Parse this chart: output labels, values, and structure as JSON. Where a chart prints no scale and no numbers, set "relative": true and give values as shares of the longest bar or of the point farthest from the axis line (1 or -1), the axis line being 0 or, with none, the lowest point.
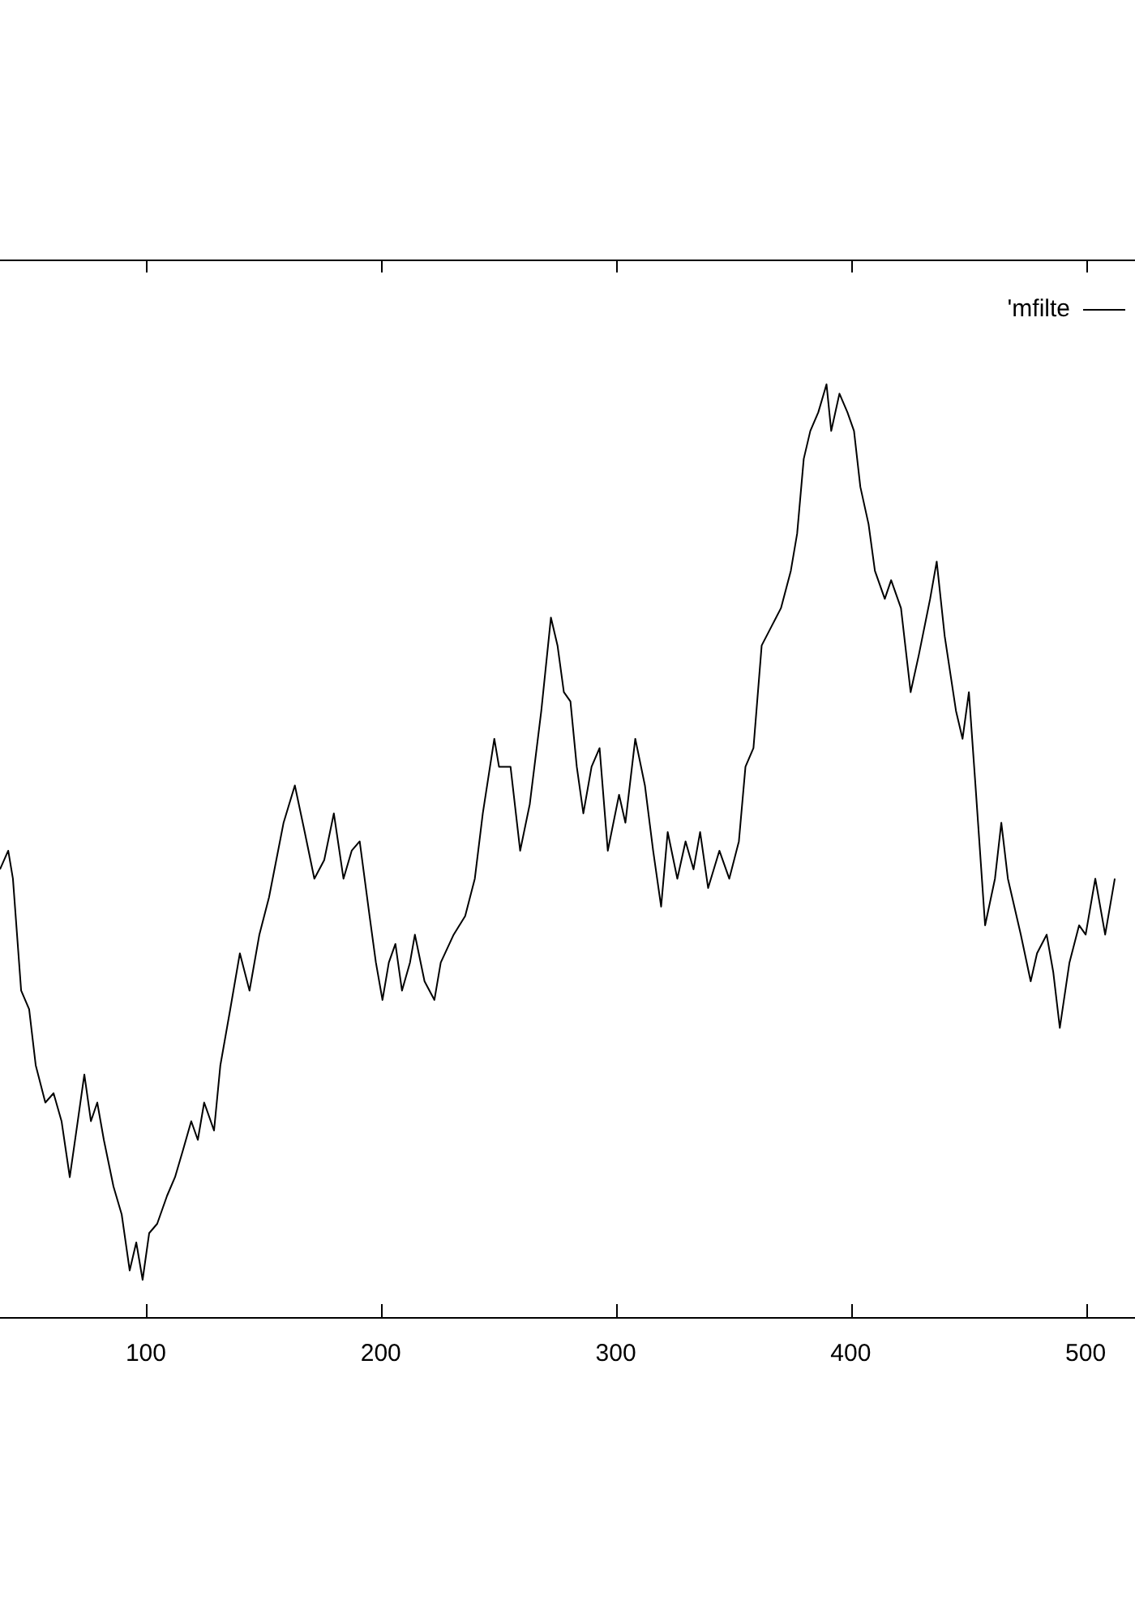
{
  "chart_data": {
    "type": "line",
    "relative": true,
    "xlim": [
      37.9,
      521
    ],
    "xticks": [
      100,
      200,
      300,
      400,
      500
    ],
    "legend": "top right",
    "marker": "none",
    "line_style": "solid",
    "series": [
      {
        "name": "'mfilte",
        "color": "#000000",
        "x": [
          37.9,
          41.4,
          43.4,
          46.9,
          50.3,
          53.1,
          57.2,
          60.7,
          64.1,
          67.6,
          71.0,
          73.8,
          76.6,
          79.3,
          82.1,
          86.2,
          89.7,
          93.1,
          95.9,
          98.6,
          101.4,
          104.8,
          109.0,
          112.4,
          115.9,
          119.3,
          122.1,
          124.8,
          129.0,
          131.7,
          135.9,
          140.0,
          144.1,
          148.3,
          152.4,
          158.6,
          163.4,
          167.6,
          171.7,
          175.9,
          180.0,
          184.1,
          187.6,
          191.0,
          195.2,
          197.9,
          200.7,
          203.4,
          206.2,
          209.0,
          212.4,
          214.5,
          218.6,
          222.8,
          225.5,
          231.0,
          235.9,
          240.0,
          243.4,
          248.3,
          250.3,
          255.2,
          259.3,
          263.4,
          268.3,
          272.4,
          275.2,
          277.9,
          280.7,
          283.4,
          286.2,
          289.7,
          293.1,
          296.6,
          301.4,
          304.1,
          308.3,
          312.4,
          315.9,
          319.3,
          322.1,
          326.2,
          329.7,
          333.1,
          335.9,
          339.3,
          344.1,
          348.3,
          352.4,
          355.2,
          358.6,
          362.1,
          366.2,
          370.3,
          374.5,
          377.2,
          380.0,
          382.8,
          386.2,
          389.7,
          391.7,
          395.2,
          398.6,
          401.4,
          404.1,
          407.6,
          410.3,
          414.5,
          417.2,
          421.4,
          425.5,
          429.0,
          433.8,
          436.6,
          440.0,
          444.8,
          447.6,
          450.3,
          453.1,
          457.2,
          461.4,
          464.1,
          466.9,
          472.4,
          476.6,
          479.3,
          483.4,
          486.2,
          489.0,
          493.1,
          497.2,
          500.0,
          504.1,
          508.3,
          512.4
        ],
        "values": [
          0.48,
          0.5,
          0.47,
          0.35,
          0.33,
          0.27,
          0.23,
          0.24,
          0.21,
          0.15,
          0.21,
          0.26,
          0.21,
          0.23,
          0.19,
          0.14,
          0.11,
          0.05,
          0.08,
          0.04,
          0.09,
          0.1,
          0.13,
          0.15,
          0.18,
          0.21,
          0.19,
          0.23,
          0.2,
          0.27,
          0.33,
          0.39,
          0.35,
          0.41,
          0.45,
          0.53,
          0.57,
          0.52,
          0.47,
          0.49,
          0.54,
          0.47,
          0.5,
          0.51,
          0.43,
          0.38,
          0.34,
          0.38,
          0.4,
          0.35,
          0.38,
          0.41,
          0.36,
          0.34,
          0.38,
          0.41,
          0.43,
          0.47,
          0.54,
          0.62,
          0.59,
          0.59,
          0.5,
          0.55,
          0.65,
          0.75,
          0.72,
          0.67,
          0.66,
          0.59,
          0.54,
          0.59,
          0.61,
          0.5,
          0.56,
          0.53,
          0.62,
          0.57,
          0.5,
          0.44,
          0.52,
          0.47,
          0.51,
          0.48,
          0.52,
          0.46,
          0.5,
          0.47,
          0.51,
          0.59,
          0.61,
          0.72,
          0.74,
          0.76,
          0.8,
          0.84,
          0.92,
          0.95,
          0.97,
          1,
          0.95,
          0.99,
          0.97,
          0.95,
          0.89,
          0.85,
          0.8,
          0.77,
          0.79,
          0.76,
          0.67,
          0.71,
          0.77,
          0.81,
          0.73,
          0.65,
          0.62,
          0.67,
          0.57,
          0.42,
          0.47,
          0.53,
          0.47,
          0.41,
          0.36,
          0.39,
          0.41,
          0.37,
          0.31,
          0.38,
          0.42,
          0.41,
          0.47,
          0.41,
          0.47
        ]
      }
    ]
  }
}
